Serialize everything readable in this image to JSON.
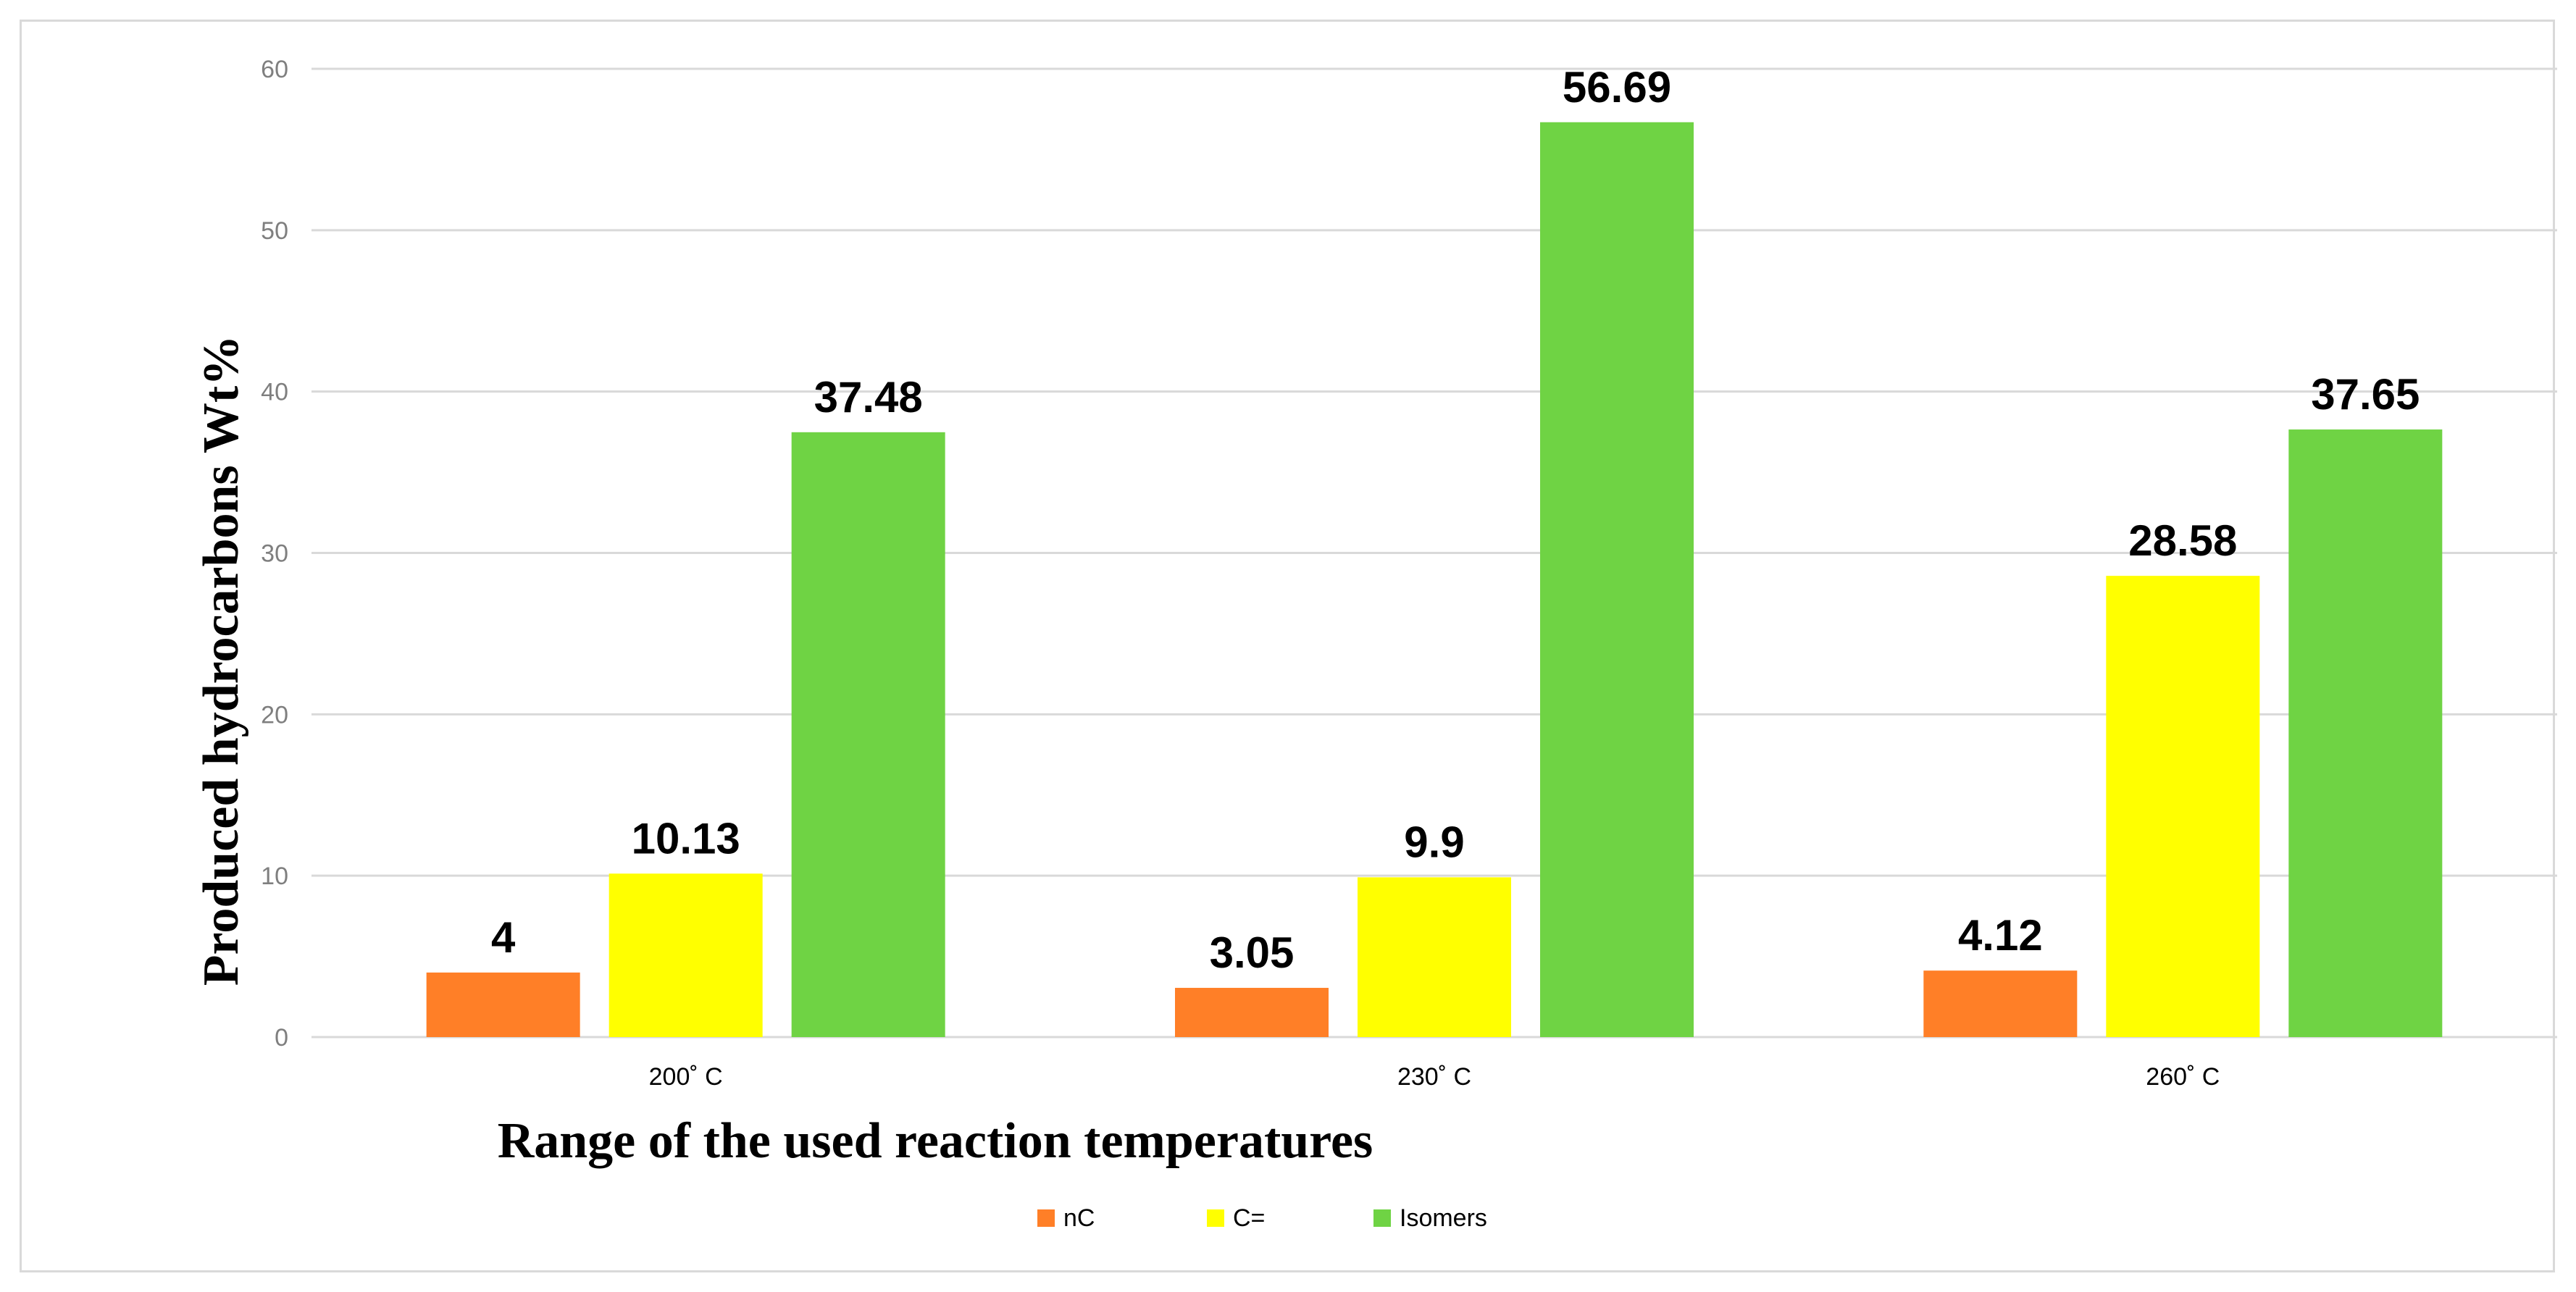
{
  "chart_data": {
    "type": "bar",
    "title": "",
    "xlabel": "Range of the used reaction temperatures",
    "ylabel": "Produced hydrocarbons Wt%",
    "categories": [
      "200˚ C",
      "230˚ C",
      "260˚ C"
    ],
    "series": [
      {
        "name": "nC",
        "color": "#ff7f27",
        "values": [
          4,
          3.05,
          4.12
        ],
        "labels": [
          "4",
          "3.05",
          "4.12"
        ]
      },
      {
        "name": "C=",
        "color": "#ffff00",
        "values": [
          10.13,
          9.9,
          28.58
        ],
        "labels": [
          "10.13",
          "9.9",
          "28.58"
        ]
      },
      {
        "name": "Isomers",
        "color": "#6fd344",
        "values": [
          37.48,
          56.69,
          37.65
        ],
        "labels": [
          "37.48",
          "56.69",
          "37.65"
        ]
      }
    ],
    "ylim": [
      0,
      60
    ],
    "yticks": [
      0,
      10,
      20,
      30,
      40,
      50,
      60
    ],
    "grid": true,
    "legend": "bottom-center"
  }
}
